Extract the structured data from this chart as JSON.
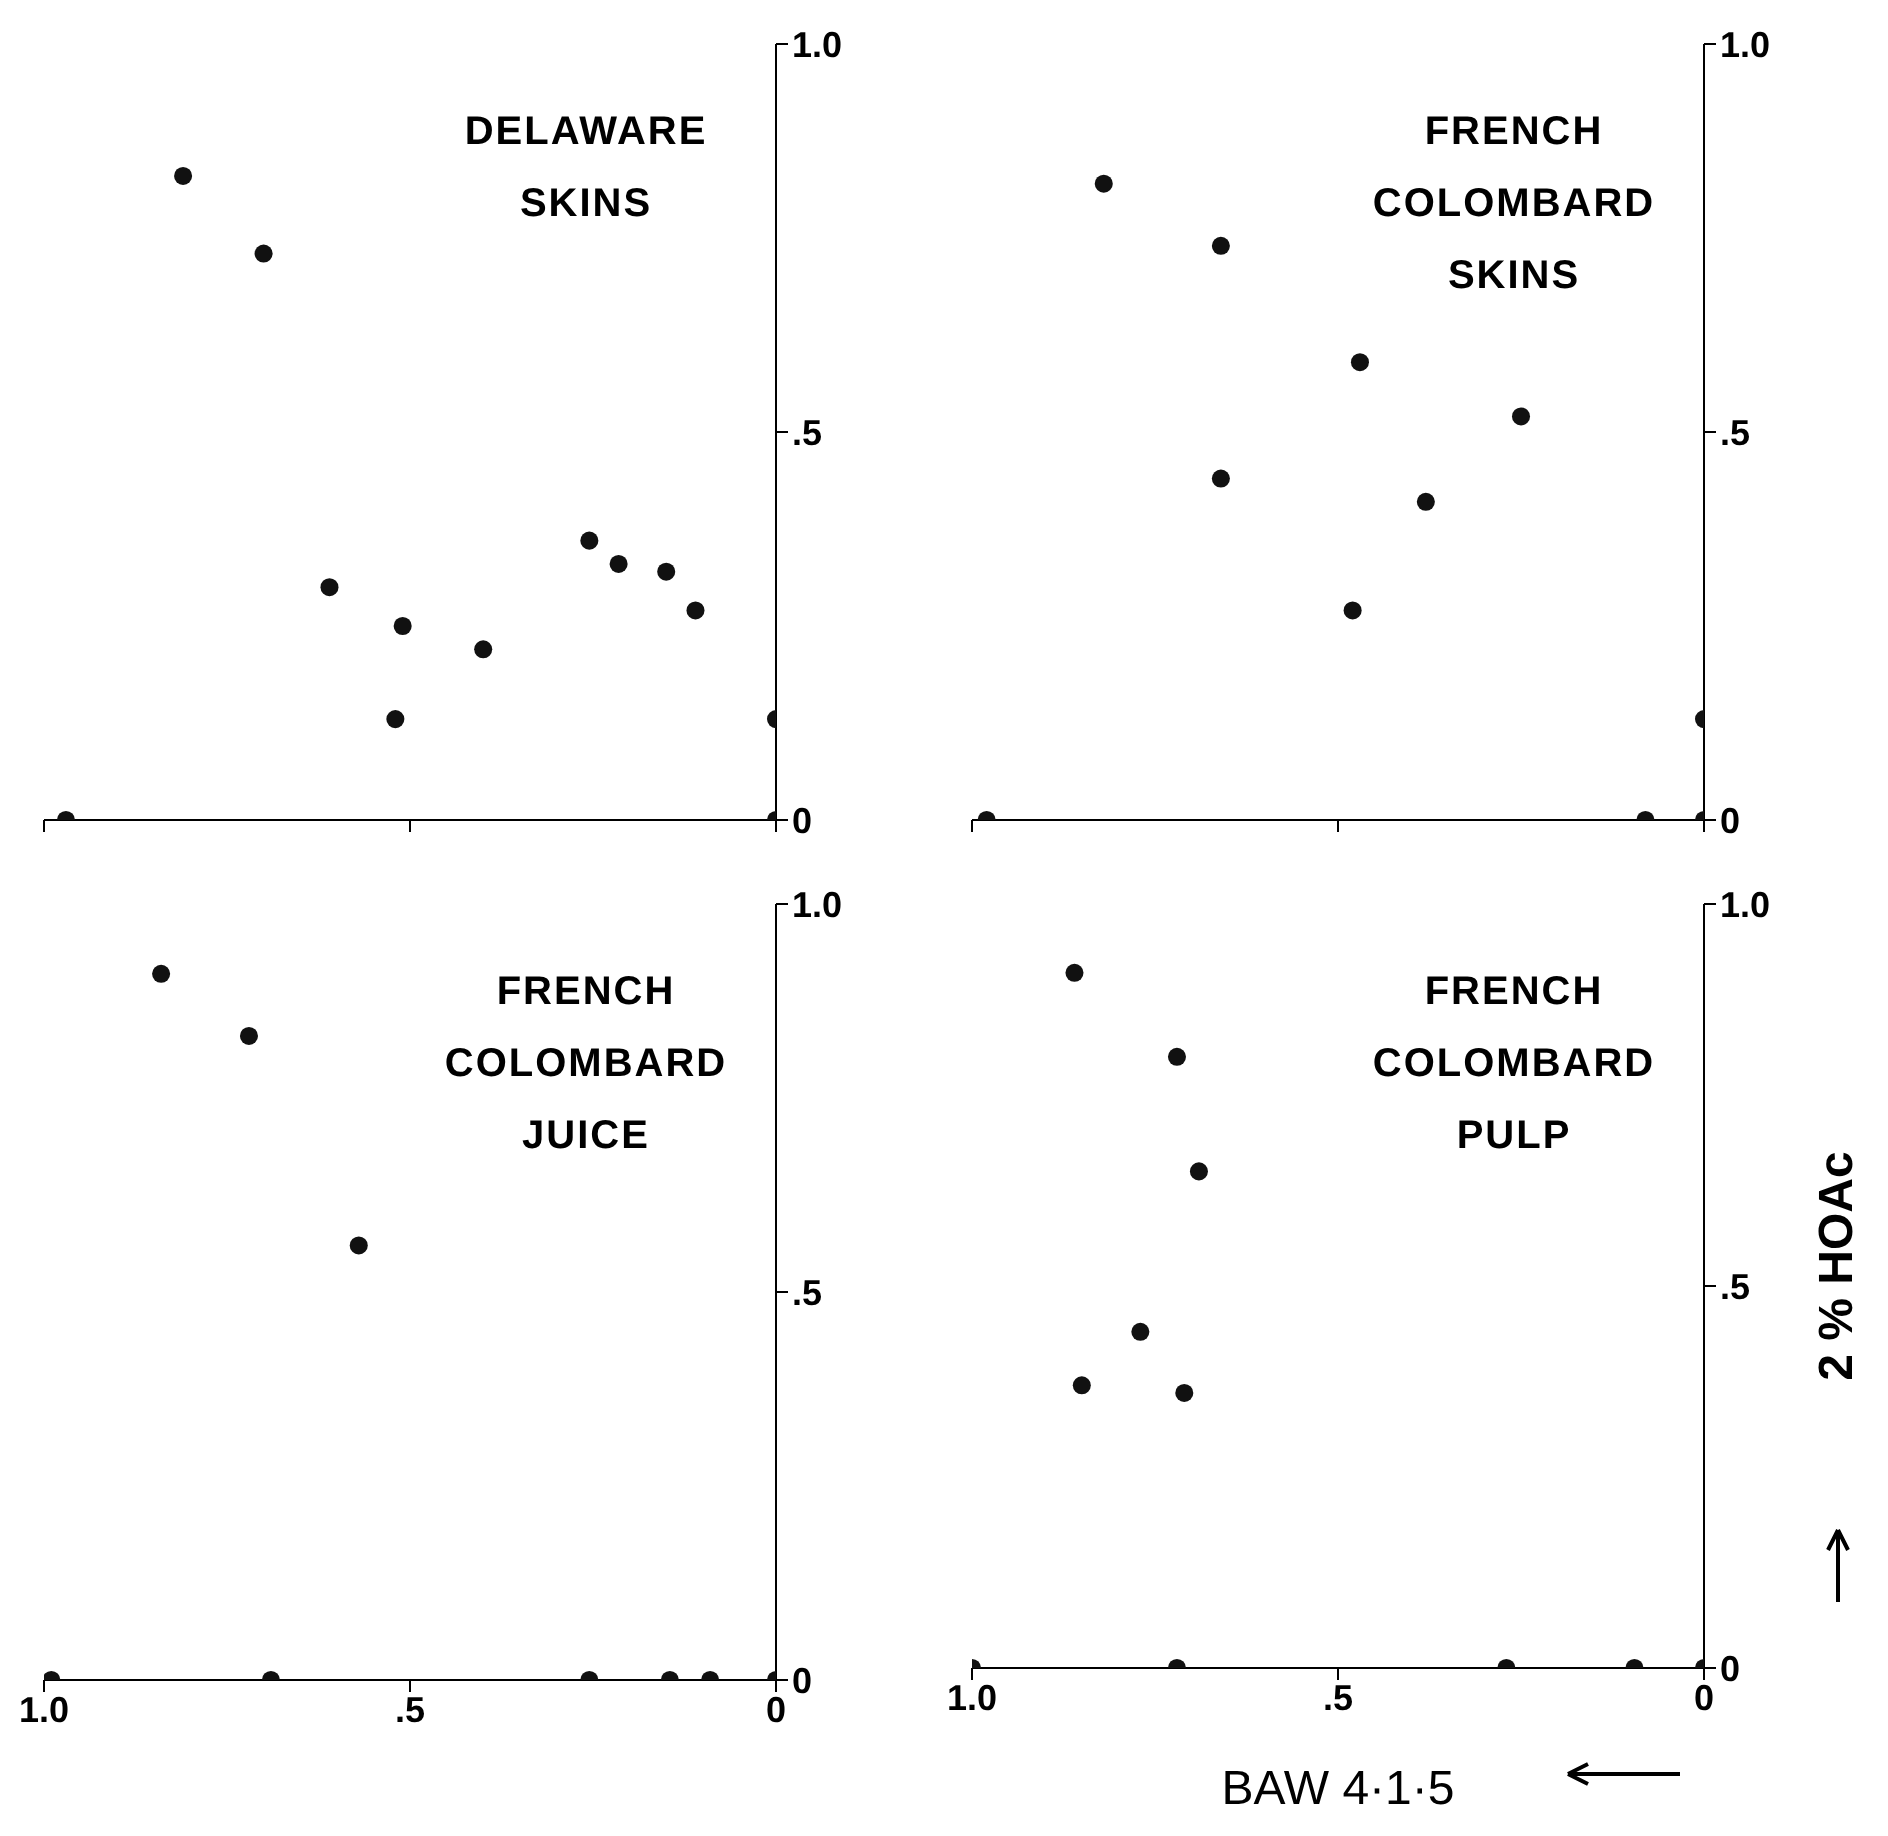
{
  "chart_data": [
    {
      "type": "scatter",
      "title": "DELAWARE SKINS",
      "x": [
        0.97,
        0.81,
        0.7,
        0.61,
        0.51,
        0.4,
        0.52,
        0.255,
        0.215,
        0.15,
        0.11,
        0,
        0
      ],
      "series": [
        {
          "color": "#111111",
          "values": [
            0,
            0.83,
            0.73,
            0.3,
            0.25,
            0.22,
            0.13,
            0.36,
            0.33,
            0.32,
            0.27,
            0.13,
            0
          ]
        }
      ],
      "xlim": [
        1,
        0
      ],
      "ylim": [
        0,
        1
      ],
      "xticks": [
        1,
        0.5,
        0
      ],
      "yticks": [
        {
          "value": 0,
          "label": "0"
        },
        {
          "value": 0.5,
          "label": ".5"
        },
        {
          "value": 1,
          "label": "1.0"
        }
      ],
      "tick_labels": "y",
      "marker": "circle",
      "grid": false,
      "legend": false
    },
    {
      "type": "scatter",
      "title": "FRENCH COLOMBARD SKINS",
      "x": [
        0.98,
        0.82,
        0.66,
        0.47,
        0.66,
        0.25,
        0.38,
        0.48,
        0,
        0.08,
        0
      ],
      "series": [
        {
          "color": "#111111",
          "values": [
            0,
            0.82,
            0.74,
            0.59,
            0.44,
            0.52,
            0.41,
            0.27,
            0.13,
            0,
            0
          ]
        }
      ],
      "xlim": [
        1,
        0
      ],
      "ylim": [
        0,
        1
      ],
      "xticks": [
        1,
        0.5,
        0
      ],
      "yticks": [
        {
          "value": 0,
          "label": "0"
        },
        {
          "value": 0.5,
          "label": ".5"
        },
        {
          "value": 1,
          "label": "1.0"
        }
      ],
      "tick_labels": "y",
      "marker": "circle",
      "grid": false,
      "legend": false
    },
    {
      "type": "scatter",
      "title": "FRENCH COLOMBARD JUICE",
      "x": [
        0.99,
        0.84,
        0.72,
        0.57,
        0.69,
        0.255,
        0.145,
        0.09,
        0
      ],
      "series": [
        {
          "color": "#111111",
          "values": [
            0,
            0.91,
            0.83,
            0.56,
            0,
            0,
            0,
            0,
            0
          ]
        }
      ],
      "xlim": [
        1,
        0
      ],
      "ylim": [
        0,
        1
      ],
      "xticks": [
        {
          "value": 1,
          "label": "1.0"
        },
        {
          "value": 0.5,
          "label": ".5"
        },
        {
          "value": 0,
          "label": "0"
        }
      ],
      "yticks": [
        {
          "value": 0,
          "label": "0"
        },
        {
          "value": 0.5,
          "label": ".5"
        },
        {
          "value": 1,
          "label": "1.0"
        }
      ],
      "marker": "circle",
      "grid": false,
      "legend": false
    },
    {
      "type": "scatter",
      "title": "FRENCH COLOMBARD PULP",
      "xlabel": "BAW 4·1·5",
      "ylabel": "2 % HOAc",
      "x": [
        1,
        0.86,
        0.72,
        0.69,
        0.77,
        0.85,
        0.71,
        0.72,
        0.27,
        0.095,
        0
      ],
      "series": [
        {
          "color": "#111111",
          "values": [
            0,
            0.91,
            0.8,
            0.65,
            0.44,
            0.37,
            0.36,
            0,
            0,
            0,
            0
          ]
        }
      ],
      "xlim": [
        1,
        0
      ],
      "ylim": [
        0,
        1
      ],
      "xticks": [
        {
          "value": 1,
          "label": "1.0"
        },
        {
          "value": 0.5,
          "label": ".5"
        },
        {
          "value": 0,
          "label": "0"
        }
      ],
      "yticks": [
        {
          "value": 0,
          "label": "0"
        },
        {
          "value": 0.5,
          "label": ".5"
        },
        {
          "value": 1,
          "label": "1.0"
        }
      ],
      "marker": "circle",
      "grid": false,
      "legend": false
    }
  ]
}
